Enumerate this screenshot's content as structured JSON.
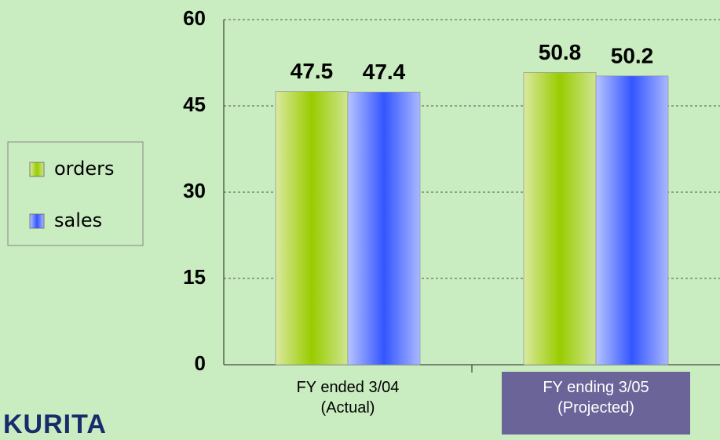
{
  "chart_data": {
    "type": "bar",
    "categories": [
      "FY ended 3/04\n(Actual)",
      "FY ending 3/05\n(Projected)"
    ],
    "series": [
      {
        "name": "orders",
        "color": "#99cc00",
        "values": [
          47.5,
          50.8
        ]
      },
      {
        "name": "sales",
        "color": "#3355ff",
        "values": [
          47.4,
          50.2
        ]
      }
    ],
    "ylim": [
      0,
      60
    ],
    "yticks": [
      0,
      15,
      30,
      45,
      60
    ],
    "grid": true,
    "logo": "KURITA"
  }
}
